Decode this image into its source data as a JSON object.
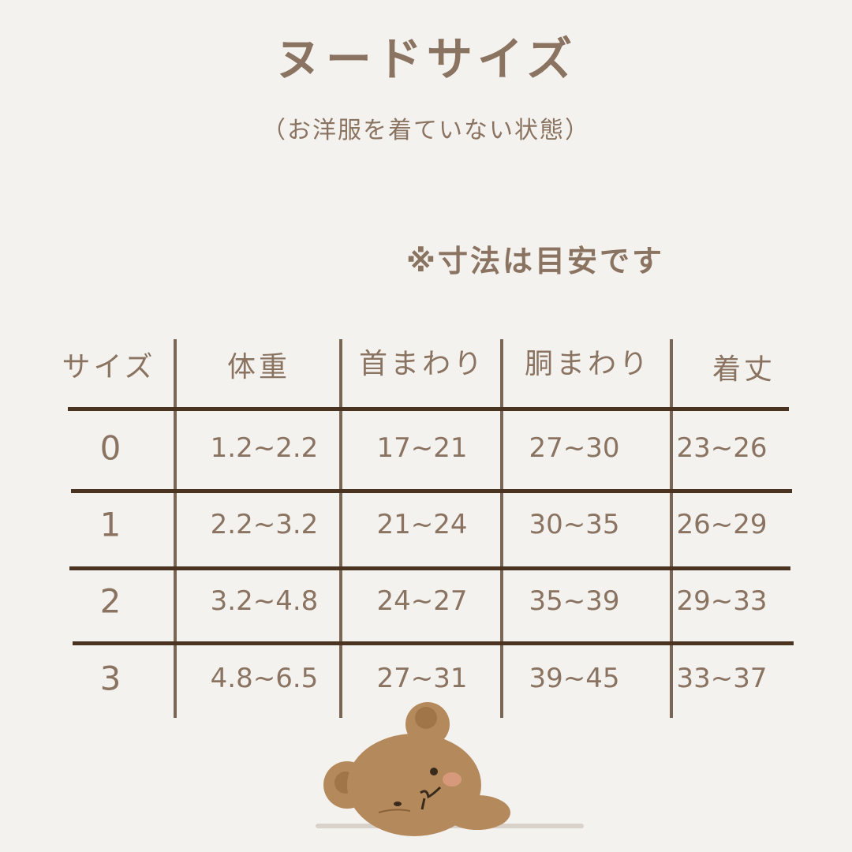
{
  "title": "ヌードサイズ",
  "subtitle": "（お洋服を着ていない状態）",
  "note": "※寸法は目安です",
  "table": {
    "headers": [
      "サイズ",
      "体重",
      "首まわり",
      "胴まわり",
      "着丈"
    ],
    "rows": [
      [
        "0",
        "1.2~2.2",
        "17~21",
        "27~30",
        "23~26"
      ],
      [
        "1",
        "2.2~3.2",
        "21~24",
        "30~35",
        "26~29"
      ],
      [
        "2",
        "3.2~4.8",
        "24~27",
        "35~39",
        "29~33"
      ],
      [
        "3",
        "4.8~6.5",
        "27~31",
        "39~45",
        "33~37"
      ]
    ]
  },
  "colors": {
    "background": "#f4f2ef",
    "text": "#8a7360",
    "row_line": "#4a3320",
    "column_line": "#7a6655",
    "bear": "#b48a5c"
  },
  "illustration": "sleeping-bear"
}
